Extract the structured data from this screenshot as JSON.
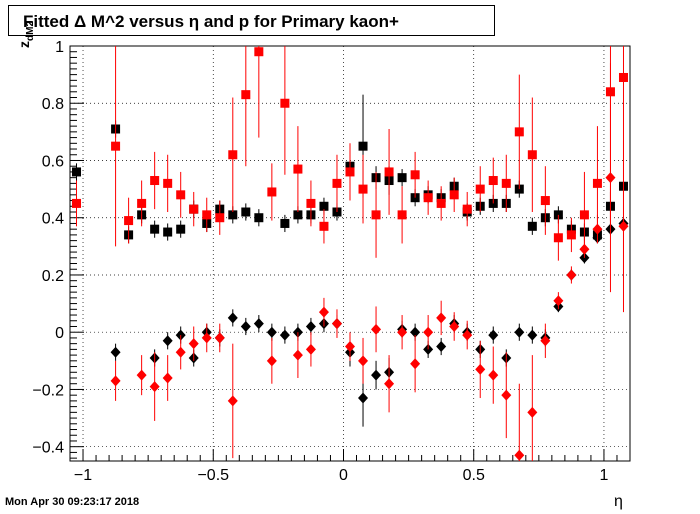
{
  "title": "Fitted Δ M^2 versus η and p for Primary kaon+",
  "timestamp": "Mon Apr 30 09:23:17 2018",
  "chart_data": {
    "type": "scatter",
    "xlabel": "η",
    "ylabel_main": "z",
    "ylabel_sub": "dM2",
    "xlim": [
      -1.05,
      1.1
    ],
    "ylim": [
      -0.45,
      1.0
    ],
    "xticks": [
      -1,
      -0.5,
      0,
      0.5,
      1
    ],
    "xtick_labels": [
      "−1",
      "−0.5",
      "0",
      "0.5",
      "1"
    ],
    "yticks": [
      -0.4,
      -0.2,
      0,
      0.2,
      0.4,
      0.6,
      0.8,
      1
    ],
    "ytick_labels": [
      "−0.4",
      "−0.2",
      "0",
      "0.2",
      "0.4",
      "0.6",
      "0.8",
      "1"
    ],
    "grid": true,
    "colors": {
      "black": "#000000",
      "red": "#ff0000"
    },
    "series": [
      {
        "marker": "square",
        "color": "#000000",
        "points": [
          {
            "x": -1.025,
            "y": 0.56,
            "err": 0.03
          },
          {
            "x": -0.875,
            "y": 0.71,
            "err": 0.03
          },
          {
            "x": -0.825,
            "y": 0.34,
            "err": 0.03
          },
          {
            "x": -0.775,
            "y": 0.41,
            "err": 0.03
          },
          {
            "x": -0.725,
            "y": 0.36,
            "err": 0.03
          },
          {
            "x": -0.675,
            "y": 0.35,
            "err": 0.03
          },
          {
            "x": -0.625,
            "y": 0.36,
            "err": 0.03
          },
          {
            "x": -0.575,
            "y": 0.43,
            "err": 0.03
          },
          {
            "x": -0.525,
            "y": 0.38,
            "err": 0.03
          },
          {
            "x": -0.475,
            "y": 0.43,
            "err": 0.03
          },
          {
            "x": -0.425,
            "y": 0.41,
            "err": 0.03
          },
          {
            "x": -0.375,
            "y": 0.42,
            "err": 0.03
          },
          {
            "x": -0.325,
            "y": 0.4,
            "err": 0.03
          },
          {
            "x": -0.225,
            "y": 0.38,
            "err": 0.03
          },
          {
            "x": -0.175,
            "y": 0.41,
            "err": 0.03
          },
          {
            "x": -0.125,
            "y": 0.41,
            "err": 0.03
          },
          {
            "x": -0.075,
            "y": 0.44,
            "err": 0.03
          },
          {
            "x": -0.025,
            "y": 0.42,
            "err": 0.03
          },
          {
            "x": 0.025,
            "y": 0.58,
            "err": 0.05
          },
          {
            "x": 0.075,
            "y": 0.65,
            "err": 0.18
          },
          {
            "x": 0.125,
            "y": 0.54,
            "err": 0.04
          },
          {
            "x": 0.175,
            "y": 0.53,
            "err": 0.05
          },
          {
            "x": 0.225,
            "y": 0.54,
            "err": 0.03
          },
          {
            "x": 0.275,
            "y": 0.47,
            "err": 0.03
          },
          {
            "x": 0.325,
            "y": 0.48,
            "err": 0.03
          },
          {
            "x": 0.375,
            "y": 0.47,
            "err": 0.03
          },
          {
            "x": 0.425,
            "y": 0.51,
            "err": 0.03
          },
          {
            "x": 0.475,
            "y": 0.42,
            "err": 0.03
          },
          {
            "x": 0.525,
            "y": 0.44,
            "err": 0.03
          },
          {
            "x": 0.575,
            "y": 0.45,
            "err": 0.03
          },
          {
            "x": 0.625,
            "y": 0.45,
            "err": 0.03
          },
          {
            "x": 0.675,
            "y": 0.5,
            "err": 0.03
          },
          {
            "x": 0.725,
            "y": 0.37,
            "err": 0.03
          },
          {
            "x": 0.775,
            "y": 0.4,
            "err": 0.03
          },
          {
            "x": 0.825,
            "y": 0.41,
            "err": 0.03
          },
          {
            "x": 0.875,
            "y": 0.36,
            "err": 0.03
          },
          {
            "x": 0.925,
            "y": 0.35,
            "err": 0.03
          },
          {
            "x": 0.975,
            "y": 0.34,
            "err": 0.03
          },
          {
            "x": 1.025,
            "y": 0.44,
            "err": 0.05
          },
          {
            "x": 1.075,
            "y": 0.51,
            "err": 0.06
          }
        ]
      },
      {
        "marker": "square",
        "color": "#ff0000",
        "points": [
          {
            "x": -1.025,
            "y": 0.45,
            "err": 0.08
          },
          {
            "x": -0.875,
            "y": 0.65,
            "err": 0.35
          },
          {
            "x": -0.825,
            "y": 0.39,
            "err": 0.08
          },
          {
            "x": -0.775,
            "y": 0.45,
            "err": 0.08
          },
          {
            "x": -0.725,
            "y": 0.53,
            "err": 0.1
          },
          {
            "x": -0.675,
            "y": 0.52,
            "err": 0.1
          },
          {
            "x": -0.625,
            "y": 0.48,
            "err": 0.08
          },
          {
            "x": -0.575,
            "y": 0.43,
            "err": 0.06
          },
          {
            "x": -0.525,
            "y": 0.41,
            "err": 0.06
          },
          {
            "x": -0.475,
            "y": 0.4,
            "err": 0.06
          },
          {
            "x": -0.425,
            "y": 0.62,
            "err": 0.2
          },
          {
            "x": -0.375,
            "y": 0.83,
            "err": 0.25
          },
          {
            "x": -0.325,
            "y": 0.98,
            "err": 0.3
          },
          {
            "x": -0.275,
            "y": 0.49,
            "err": 0.1
          },
          {
            "x": -0.225,
            "y": 0.8,
            "err": 0.25
          },
          {
            "x": -0.175,
            "y": 0.57,
            "err": 0.15
          },
          {
            "x": -0.125,
            "y": 0.45,
            "err": 0.08
          },
          {
            "x": -0.075,
            "y": 0.37,
            "err": 0.06
          },
          {
            "x": -0.025,
            "y": 0.52,
            "err": 0.1
          },
          {
            "x": 0.025,
            "y": 0.56,
            "err": 0.1
          },
          {
            "x": 0.075,
            "y": 0.5,
            "err": 0.12
          },
          {
            "x": 0.125,
            "y": 0.41,
            "err": 0.15
          },
          {
            "x": 0.175,
            "y": 0.56,
            "err": 0.15
          },
          {
            "x": 0.225,
            "y": 0.41,
            "err": 0.1
          },
          {
            "x": 0.275,
            "y": 0.55,
            "err": 0.08
          },
          {
            "x": 0.325,
            "y": 0.47,
            "err": 0.06
          },
          {
            "x": 0.375,
            "y": 0.45,
            "err": 0.06
          },
          {
            "x": 0.425,
            "y": 0.48,
            "err": 0.06
          },
          {
            "x": 0.475,
            "y": 0.43,
            "err": 0.06
          },
          {
            "x": 0.525,
            "y": 0.5,
            "err": 0.08
          },
          {
            "x": 0.575,
            "y": 0.53,
            "err": 0.08
          },
          {
            "x": 0.625,
            "y": 0.52,
            "err": 0.1
          },
          {
            "x": 0.675,
            "y": 0.7,
            "err": 0.2
          },
          {
            "x": 0.725,
            "y": 0.62,
            "err": 0.2
          },
          {
            "x": 0.775,
            "y": 0.46,
            "err": 0.12
          },
          {
            "x": 0.825,
            "y": 0.33,
            "err": 0.08
          },
          {
            "x": 0.875,
            "y": 0.34,
            "err": 0.06
          },
          {
            "x": 0.925,
            "y": 0.41,
            "err": 0.15
          },
          {
            "x": 0.975,
            "y": 0.52,
            "err": 0.2
          },
          {
            "x": 1.025,
            "y": 0.84,
            "err": 0.5
          },
          {
            "x": 1.075,
            "y": 0.89,
            "err": 0.7
          }
        ]
      },
      {
        "marker": "diamond",
        "color": "#000000",
        "points": [
          {
            "x": -0.875,
            "y": -0.07,
            "err": 0.03
          },
          {
            "x": -0.725,
            "y": -0.09,
            "err": 0.03
          },
          {
            "x": -0.675,
            "y": -0.03,
            "err": 0.03
          },
          {
            "x": -0.625,
            "y": -0.01,
            "err": 0.03
          },
          {
            "x": -0.575,
            "y": -0.09,
            "err": 0.03
          },
          {
            "x": -0.525,
            "y": 0.0,
            "err": 0.03
          },
          {
            "x": -0.475,
            "y": -0.02,
            "err": 0.03
          },
          {
            "x": -0.425,
            "y": 0.05,
            "err": 0.03
          },
          {
            "x": -0.375,
            "y": 0.02,
            "err": 0.03
          },
          {
            "x": -0.325,
            "y": 0.03,
            "err": 0.03
          },
          {
            "x": -0.275,
            "y": 0.0,
            "err": 0.03
          },
          {
            "x": -0.225,
            "y": -0.01,
            "err": 0.03
          },
          {
            "x": -0.175,
            "y": 0.0,
            "err": 0.03
          },
          {
            "x": -0.125,
            "y": 0.02,
            "err": 0.03
          },
          {
            "x": -0.075,
            "y": 0.03,
            "err": 0.03
          },
          {
            "x": -0.025,
            "y": 0.03,
            "err": 0.03
          },
          {
            "x": 0.025,
            "y": -0.07,
            "err": 0.05
          },
          {
            "x": 0.075,
            "y": -0.23,
            "err": 0.1
          },
          {
            "x": 0.125,
            "y": -0.15,
            "err": 0.05
          },
          {
            "x": 0.175,
            "y": -0.14,
            "err": 0.05
          },
          {
            "x": 0.225,
            "y": 0.01,
            "err": 0.03
          },
          {
            "x": 0.275,
            "y": 0.0,
            "err": 0.03
          },
          {
            "x": 0.325,
            "y": -0.06,
            "err": 0.03
          },
          {
            "x": 0.375,
            "y": -0.05,
            "err": 0.03
          },
          {
            "x": 0.425,
            "y": 0.03,
            "err": 0.03
          },
          {
            "x": 0.475,
            "y": 0.0,
            "err": 0.03
          },
          {
            "x": 0.525,
            "y": -0.06,
            "err": 0.03
          },
          {
            "x": 0.575,
            "y": -0.01,
            "err": 0.03
          },
          {
            "x": 0.625,
            "y": -0.09,
            "err": 0.03
          },
          {
            "x": 0.675,
            "y": 0.0,
            "err": 0.03
          },
          {
            "x": 0.725,
            "y": -0.01,
            "err": 0.03
          },
          {
            "x": 0.775,
            "y": -0.02,
            "err": 0.03
          },
          {
            "x": 0.825,
            "y": 0.09,
            "err": 0.02
          },
          {
            "x": 0.875,
            "y": 0.2,
            "err": 0.02
          },
          {
            "x": 0.925,
            "y": 0.26,
            "err": 0.02
          },
          {
            "x": 0.975,
            "y": 0.33,
            "err": 0.02
          },
          {
            "x": 1.025,
            "y": 0.36,
            "err": 0.02
          },
          {
            "x": 1.075,
            "y": 0.38,
            "err": 0.02
          }
        ]
      },
      {
        "marker": "diamond",
        "color": "#ff0000",
        "points": [
          {
            "x": -0.875,
            "y": -0.17,
            "err": 0.07
          },
          {
            "x": -0.775,
            "y": -0.15,
            "err": 0.07
          },
          {
            "x": -0.725,
            "y": -0.19,
            "err": 0.12
          },
          {
            "x": -0.675,
            "y": -0.16,
            "err": 0.08
          },
          {
            "x": -0.625,
            "y": -0.07,
            "err": 0.06
          },
          {
            "x": -0.575,
            "y": -0.04,
            "err": 0.06
          },
          {
            "x": -0.525,
            "y": -0.02,
            "err": 0.05
          },
          {
            "x": -0.475,
            "y": -0.02,
            "err": 0.05
          },
          {
            "x": -0.425,
            "y": -0.24,
            "err": 0.2
          },
          {
            "x": -0.275,
            "y": -0.1,
            "err": 0.08
          },
          {
            "x": -0.175,
            "y": -0.08,
            "err": 0.08
          },
          {
            "x": -0.125,
            "y": -0.06,
            "err": 0.06
          },
          {
            "x": -0.075,
            "y": 0.07,
            "err": 0.05
          },
          {
            "x": -0.025,
            "y": 0.03,
            "err": 0.05
          },
          {
            "x": 0.025,
            "y": -0.05,
            "err": 0.05
          },
          {
            "x": 0.075,
            "y": -0.1,
            "err": 0.08
          },
          {
            "x": 0.125,
            "y": 0.01,
            "err": 0.08
          },
          {
            "x": 0.175,
            "y": -0.18,
            "err": 0.1
          },
          {
            "x": 0.225,
            "y": 0.0,
            "err": 0.06
          },
          {
            "x": 0.275,
            "y": -0.11,
            "err": 0.1
          },
          {
            "x": 0.325,
            "y": 0.0,
            "err": 0.06
          },
          {
            "x": 0.375,
            "y": 0.05,
            "err": 0.06
          },
          {
            "x": 0.425,
            "y": 0.02,
            "err": 0.05
          },
          {
            "x": 0.475,
            "y": -0.01,
            "err": 0.05
          },
          {
            "x": 0.525,
            "y": -0.13,
            "err": 0.1
          },
          {
            "x": 0.575,
            "y": -0.15,
            "err": 0.1
          },
          {
            "x": 0.625,
            "y": -0.22,
            "err": 0.15
          },
          {
            "x": 0.675,
            "y": -0.43,
            "err": 0.25
          },
          {
            "x": 0.725,
            "y": -0.28,
            "err": 0.2
          },
          {
            "x": 0.775,
            "y": -0.03,
            "err": 0.06
          },
          {
            "x": 0.825,
            "y": 0.11,
            "err": 0.03
          },
          {
            "x": 0.875,
            "y": 0.2,
            "err": 0.03
          },
          {
            "x": 0.925,
            "y": 0.29,
            "err": 0.03
          },
          {
            "x": 0.975,
            "y": 0.36,
            "err": 0.05
          },
          {
            "x": 1.025,
            "y": 0.54,
            "err": 0.4
          },
          {
            "x": 1.075,
            "y": 0.37,
            "err": 0.3
          }
        ]
      }
    ]
  }
}
